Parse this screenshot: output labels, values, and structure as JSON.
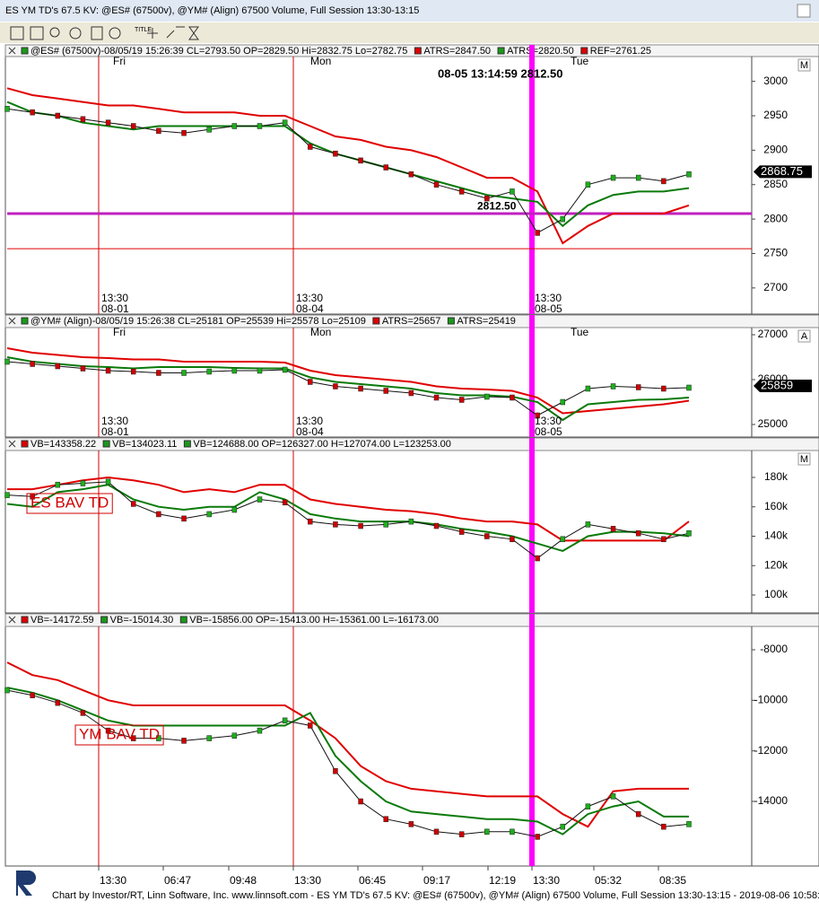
{
  "window": {
    "title": "ES YM TD's 67.5 KV: @ES# (67500v), @YM# (Align) 67500 Volume, Full Session 13:30-13:15"
  },
  "toolbar": {
    "title_icon": "TITLE"
  },
  "panes": [
    {
      "header": [
        {
          "text": "@ES# (67500v)-08/05/19 15:26:39 CL=2793.50 OP=2829.50 Hi=2832.75 Lo=2782.75",
          "color": "#1a9a1a"
        },
        {
          "text": "ATRS=2847.50",
          "color": "#e00000"
        },
        {
          "text": "ATRS=2820.50",
          "color": "#1a9a1a"
        },
        {
          "text": "REF=2761.25",
          "color": "#e00000"
        }
      ],
      "corner_label": "M",
      "ylim": [
        2662,
        3036
      ],
      "yticks": [
        2700,
        2750,
        2800,
        2850,
        2900,
        2950,
        3000
      ],
      "days": [
        "Fri",
        "Mon",
        "Tue"
      ],
      "dates": [
        [
          "13:30",
          "08-01"
        ],
        [
          "13:30",
          "08-04"
        ],
        [
          "13:30",
          "08-05"
        ]
      ],
      "series": [
        {
          "color": "#e00000",
          "values": [
            2990,
            2980,
            2975,
            2970,
            2965,
            2965,
            2960,
            2955,
            2955,
            2955,
            2950,
            2950,
            2935,
            2920,
            2915,
            2905,
            2900,
            2890,
            2875,
            2860,
            2860,
            2840,
            2765,
            2790,
            2808,
            2808,
            2808,
            2820
          ]
        },
        {
          "color": "#0a7a0a",
          "values": [
            2970,
            2955,
            2950,
            2940,
            2935,
            2930,
            2935,
            2935,
            2935,
            2935,
            2935,
            2935,
            2910,
            2895,
            2885,
            2875,
            2865,
            2855,
            2845,
            2835,
            2830,
            2825,
            2790,
            2820,
            2835,
            2840,
            2840,
            2845
          ]
        },
        {
          "color": "#111111",
          "values": [
            2960,
            2955,
            2950,
            2945,
            2940,
            2935,
            2928,
            2925,
            2930,
            2935,
            2935,
            2940,
            2905,
            2895,
            2885,
            2875,
            2865,
            2850,
            2840,
            2830,
            2840,
            2780,
            2800,
            2850,
            2860,
            2860,
            2855,
            2865
          ]
        }
      ],
      "hlines": [
        {
          "value": 2808,
          "color": "#c020c0"
        },
        {
          "value": 2757,
          "color": "#e00000"
        }
      ],
      "price_tag": 2868.75,
      "level_label": {
        "value": 2812.5,
        "label": "2812.50"
      },
      "cursor_note": "08-05 13:14:59 2812.50"
    },
    {
      "header": [
        {
          "text": "@YM# (Align)-08/05/19 15:26:38 CL=25181 OP=25539 Hi=25578 Lo=25109",
          "color": "#1a9a1a"
        },
        {
          "text": "ATRS=25657",
          "color": "#e00000"
        },
        {
          "text": "ATRS=25419",
          "color": "#1a9a1a"
        }
      ],
      "corner_label": "A",
      "ylim": [
        24720,
        27160
      ],
      "yticks": [
        25000,
        26000,
        27000
      ],
      "days": [
        "Fri",
        "Mon",
        "Tue"
      ],
      "dates": [
        [
          "13:30",
          "08-01"
        ],
        [
          "13:30",
          "08-04"
        ],
        [
          "13:30",
          "08-05"
        ]
      ],
      "series": [
        {
          "color": "#e00000",
          "values": [
            26700,
            26600,
            26550,
            26500,
            26480,
            26450,
            26450,
            26400,
            26400,
            26400,
            26400,
            26380,
            26200,
            26100,
            26050,
            26000,
            25950,
            25850,
            25800,
            25780,
            25750,
            25600,
            25250,
            25300,
            25350,
            25400,
            25450,
            25530
          ]
        },
        {
          "color": "#0a7a0a",
          "values": [
            26500,
            26400,
            26350,
            26300,
            26280,
            26250,
            26280,
            26280,
            26280,
            26260,
            26250,
            26250,
            26050,
            25950,
            25900,
            25850,
            25800,
            25700,
            25650,
            25650,
            25620,
            25500,
            25100,
            25450,
            25500,
            25550,
            25560,
            25600
          ]
        },
        {
          "color": "#111111",
          "values": [
            26400,
            26350,
            26300,
            26250,
            26200,
            26180,
            26150,
            26150,
            26180,
            26200,
            26200,
            26220,
            25950,
            25850,
            25800,
            25750,
            25700,
            25600,
            25550,
            25620,
            25600,
            25200,
            25500,
            25800,
            25850,
            25830,
            25800,
            25820
          ]
        }
      ],
      "price_tag": 25859
    },
    {
      "header": [
        {
          "text": "VB=143358.22",
          "color": "#e00000"
        },
        {
          "text": "VB=134023.11",
          "color": "#1a9a1a"
        },
        {
          "text": "VB=124688.00 OP=126327.00 H=127074.00 L=123253.00",
          "color": "#1a9a1a"
        }
      ],
      "corner_label": "M",
      "ylim": [
        87800,
        198300
      ],
      "yticks": [
        {
          "value": 100000,
          "label": "100k"
        },
        {
          "value": 120000,
          "label": "120k"
        },
        {
          "value": 140000,
          "label": "140k"
        },
        {
          "value": 160000,
          "label": "160k"
        },
        {
          "value": 180000,
          "label": "180k"
        }
      ],
      "series": [
        {
          "color": "#e00000",
          "values": [
            172000,
            172000,
            175000,
            178000,
            180000,
            178000,
            175000,
            170000,
            172000,
            170000,
            175000,
            175000,
            165000,
            162000,
            160000,
            158000,
            157000,
            155000,
            152000,
            150000,
            150000,
            148000,
            137000,
            137000,
            137000,
            137000,
            137000,
            150000
          ]
        },
        {
          "color": "#0a7a0a",
          "values": [
            162000,
            160000,
            170000,
            172000,
            175000,
            165000,
            160000,
            158000,
            160000,
            160000,
            170000,
            165000,
            155000,
            152000,
            150000,
            150000,
            150000,
            148000,
            145000,
            143000,
            140000,
            135000,
            130000,
            140000,
            143000,
            143000,
            142000,
            140000
          ]
        },
        {
          "color": "#111111",
          "values": [
            168000,
            167000,
            175000,
            176000,
            177000,
            162000,
            155000,
            152000,
            155000,
            158000,
            165000,
            163000,
            150000,
            148000,
            147000,
            148000,
            150000,
            147000,
            143000,
            140000,
            138000,
            125000,
            138000,
            148000,
            145000,
            142000,
            138000,
            142000
          ]
        }
      ],
      "note": "ES BAV TD"
    },
    {
      "header": [
        {
          "text": "VB=-14172.59",
          "color": "#e00000"
        },
        {
          "text": "VB=-15014.30",
          "color": "#1a9a1a"
        },
        {
          "text": "VB=-15856.00 OP=-15413.00 H=-15361.00 L=-16173.00",
          "color": "#1a9a1a"
        }
      ],
      "ylim": [
        -16556,
        -7077
      ],
      "yticks": [
        -14000,
        -12000,
        -10000,
        -8000
      ],
      "series": [
        {
          "color": "#e00000",
          "values": [
            -8500,
            -9000,
            -9200,
            -9600,
            -10000,
            -10200,
            -10200,
            -10200,
            -10200,
            -10200,
            -10200,
            -10200,
            -10800,
            -11500,
            -12600,
            -13200,
            -13500,
            -13600,
            -13700,
            -13800,
            -13800,
            -13800,
            -14500,
            -15000,
            -13600,
            -13500,
            -13500,
            -13500
          ]
        },
        {
          "color": "#0a7a0a",
          "values": [
            -9500,
            -9700,
            -10000,
            -10400,
            -10800,
            -11000,
            -11000,
            -11000,
            -11000,
            -11000,
            -11000,
            -11000,
            -10500,
            -12200,
            -13200,
            -14000,
            -14400,
            -14500,
            -14600,
            -14700,
            -14700,
            -14800,
            -15300,
            -14500,
            -14200,
            -14000,
            -14600,
            -14600
          ]
        },
        {
          "color": "#111111",
          "values": [
            -9600,
            -9800,
            -10100,
            -10500,
            -11200,
            -11500,
            -11500,
            -11600,
            -11500,
            -11400,
            -11200,
            -10800,
            -11000,
            -12800,
            -14000,
            -14700,
            -14900,
            -15200,
            -15300,
            -15200,
            -15200,
            -15400,
            -15000,
            -14200,
            -13800,
            -14500,
            -15000,
            -14900
          ]
        }
      ],
      "note": "YM BAV TD"
    }
  ],
  "time_axis": [
    "13:30",
    "06:47",
    "09:48",
    "13:30",
    "06:45",
    "09:17",
    "12:19",
    "13:30",
    "05:32",
    "08:35"
  ],
  "footer": "Chart by Investor/RT, Linn Software, Inc. www.linnsoft.com - ES YM TD's 67.5 KV: @ES# (67500v), @YM# (Align) 67500 Volume, Full Session 13:30-13:15 - 2019-08-06 10:58:"
}
